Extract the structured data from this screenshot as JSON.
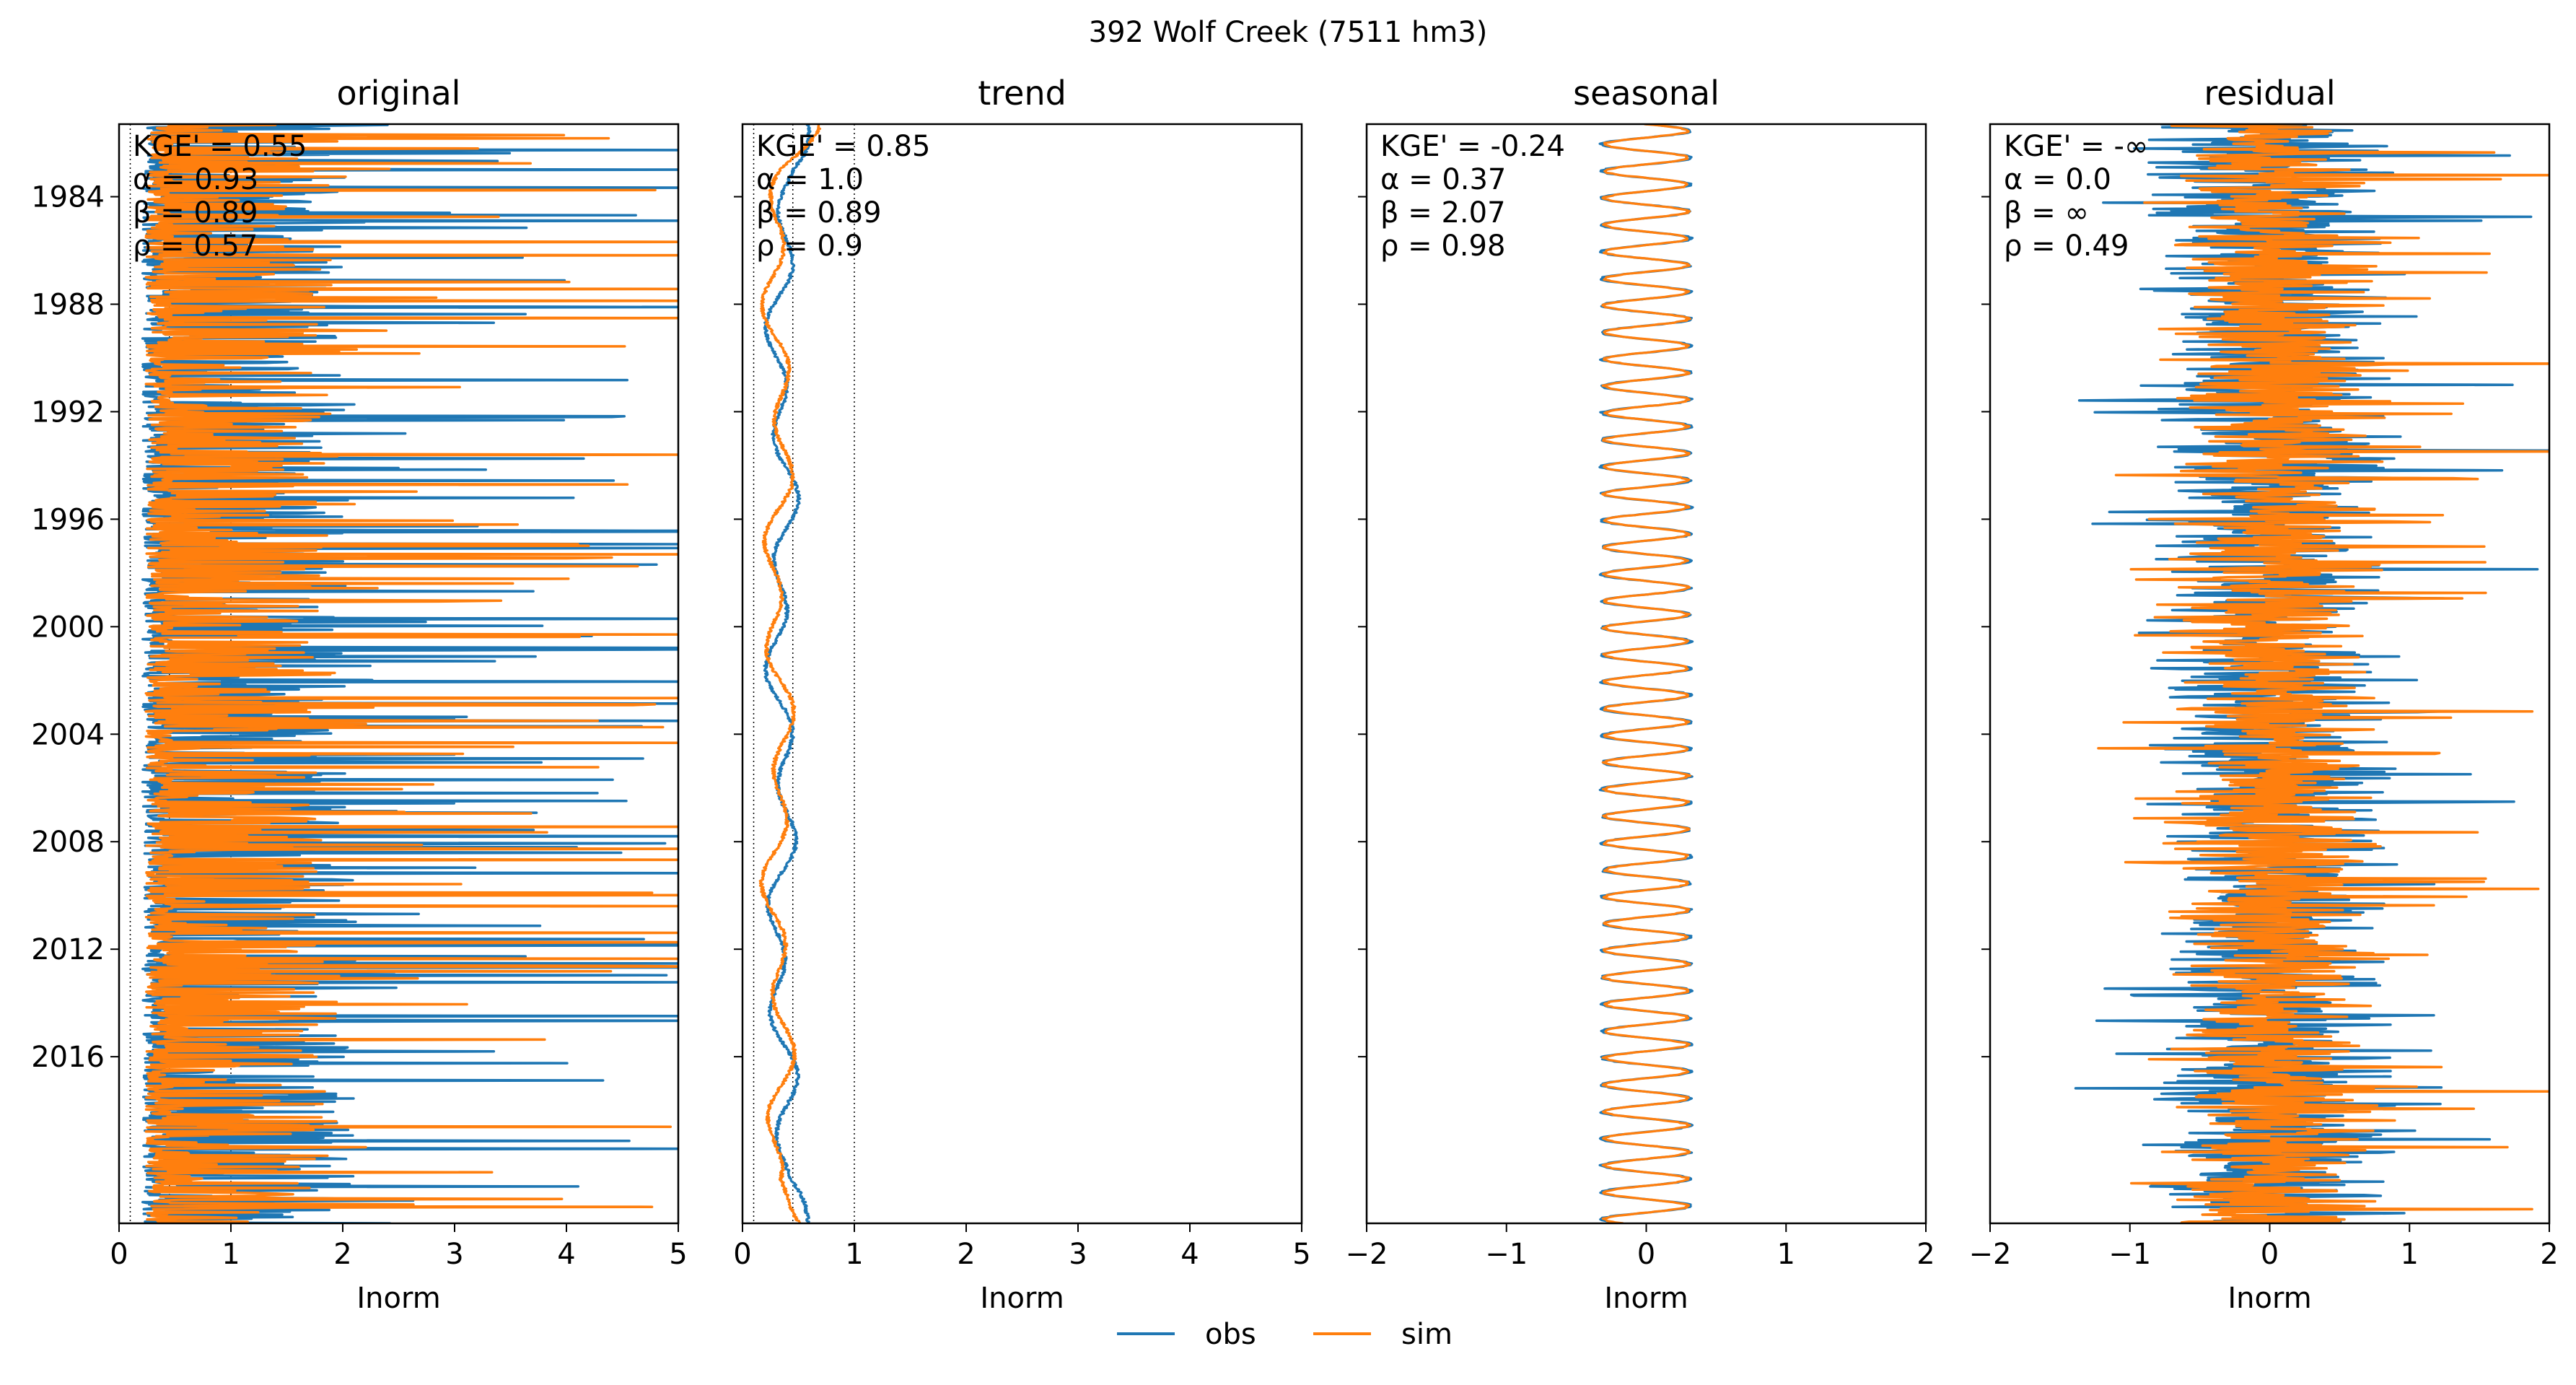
{
  "figure": {
    "suptitle": "392  Wolf Creek (7511 hm3)",
    "legend": {
      "placement": "bottom-center",
      "entries": [
        {
          "label": "obs",
          "color": "#1f77b4"
        },
        {
          "label": "sim",
          "color": "#ff7f0e"
        }
      ]
    }
  },
  "chart_data": [
    {
      "type": "line",
      "title": "original",
      "xlabel": "Inorm",
      "ylabel": "",
      "xlim": [
        0,
        5
      ],
      "ylim": [
        2022.2,
        1981.3
      ],
      "xticks": [
        "0",
        "1",
        "2",
        "3",
        "4",
        "5"
      ],
      "yticks": [
        "1984",
        "1988",
        "1992",
        "1996",
        "2000",
        "2004",
        "2008",
        "2012",
        "2016"
      ],
      "reference_lines_x": [
        0.1,
        0.45,
        1.0
      ],
      "stats": [
        "KGE' = 0.55",
        "α = 0.93",
        "β = 0.89",
        "ρ = 0.57"
      ],
      "series": [
        {
          "name": "obs",
          "color": "#1f77b4",
          "style": "spiky daily flow",
          "base": 0.35,
          "amp": 1.1,
          "max": 5.0
        },
        {
          "name": "sim",
          "color": "#ff7f0e",
          "style": "spiky daily flow",
          "base": 0.4,
          "amp": 0.95,
          "max": 5.0
        }
      ]
    },
    {
      "type": "line",
      "title": "trend",
      "xlabel": "Inorm",
      "xlim": [
        0,
        5
      ],
      "ylim": [
        2022.2,
        1981.3
      ],
      "xticks": [
        "0",
        "1",
        "2",
        "3",
        "4",
        "5"
      ],
      "reference_lines_x": [
        0.1,
        0.45,
        1.0
      ],
      "stats": [
        "KGE' = 0.85",
        "α = 1.0",
        "β = 0.89",
        "ρ = 0.9"
      ],
      "series": [
        {
          "name": "obs",
          "color": "#1f77b4",
          "style": "smooth trend",
          "mean": 0.35
        },
        {
          "name": "sim",
          "color": "#ff7f0e",
          "style": "smooth trend",
          "mean": 0.32
        }
      ]
    },
    {
      "type": "line",
      "title": "seasonal",
      "xlabel": "Inorm",
      "xlim": [
        -2,
        2
      ],
      "ylim": [
        2022.2,
        1981.3
      ],
      "xticks": [
        "−2",
        "−1",
        "0",
        "1",
        "2"
      ],
      "stats": [
        "KGE' = -0.24",
        "α = 0.37",
        "β = 2.07",
        "ρ = 0.98"
      ],
      "series": [
        {
          "name": "obs",
          "color": "#1f77b4",
          "style": "annual cycle",
          "amplitude": 0.32
        },
        {
          "name": "sim",
          "color": "#ff7f0e",
          "style": "annual cycle",
          "amplitude": 0.3
        }
      ]
    },
    {
      "type": "line",
      "title": "residual",
      "xlabel": "Inorm",
      "xlim": [
        -2,
        2
      ],
      "ylim": [
        2022.2,
        1981.3
      ],
      "xticks": [
        "−2",
        "−1",
        "0",
        "1",
        "2"
      ],
      "stats": [
        "KGE' = -∞",
        "α = 0.0",
        "β = ∞",
        "ρ = 0.49"
      ],
      "series": [
        {
          "name": "obs",
          "color": "#1f77b4",
          "style": "noisy residual",
          "spread": 0.7
        },
        {
          "name": "sim",
          "color": "#ff7f0e",
          "style": "noisy residual",
          "spread": 0.6
        }
      ]
    }
  ]
}
